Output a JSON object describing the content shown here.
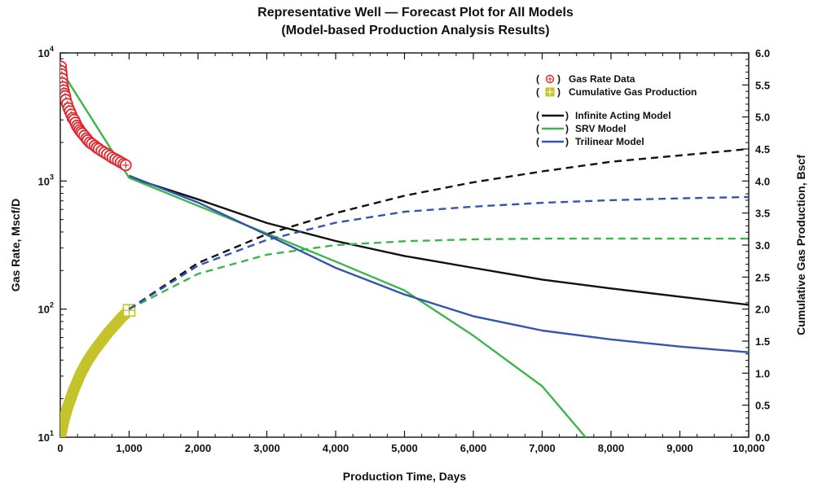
{
  "chart_data": {
    "type": "line",
    "title": "Representative Well — Forecast Plot for All Models",
    "subtitle": "(Model-based Production Analysis Results)",
    "xlabel": "Production Time, Days",
    "ylabel_left": "Gas Rate, Mscf/D",
    "ylabel_right": "Cumulative Gas Production, Bscf",
    "xlim": [
      0,
      10000
    ],
    "ylim_left": [
      10,
      10000
    ],
    "yscale_left": "log",
    "ylim_right": [
      0,
      6
    ],
    "x_ticks": [
      0,
      1000,
      2000,
      3000,
      4000,
      5000,
      6000,
      7000,
      8000,
      9000,
      10000
    ],
    "x_tick_labels": [
      "0",
      "1,000",
      "2,000",
      "3,000",
      "4,000",
      "5,000",
      "6,000",
      "7,000",
      "8,000",
      "9,000",
      "10,000"
    ],
    "y_left_ticks": [
      {
        "value": 10,
        "base": "10",
        "exp": "1"
      },
      {
        "value": 100,
        "base": "10",
        "exp": "2"
      },
      {
        "value": 1000,
        "base": "10",
        "exp": "3"
      },
      {
        "value": 10000,
        "base": "10",
        "exp": "4"
      }
    ],
    "y_right_ticks": [
      0,
      0.5,
      1,
      1.5,
      2,
      2.5,
      3,
      3.5,
      4,
      4.5,
      5,
      5.5,
      6
    ],
    "y_right_tick_labels": [
      "0.0",
      "0.5",
      "1.0",
      "1.5",
      "2.0",
      "2.5",
      "3.0",
      "3.5",
      "4.0",
      "4.5",
      "5.0",
      "5.5",
      "6.0"
    ],
    "legend": {
      "placement": "top-right",
      "entries": [
        {
          "label": "Gas Rate Data",
          "marker": "circle-plus",
          "color": "#e0272e"
        },
        {
          "label": "Cumulative Gas Production",
          "marker": "square-plus",
          "color": "#c4c42a"
        },
        {
          "label": "Infinite Acting Model",
          "line": "solid",
          "color": "#111111"
        },
        {
          "label": "SRV Model",
          "line": "solid",
          "color": "#3cb54a"
        },
        {
          "label": "Trilinear Model",
          "line": "solid",
          "color": "#3355b0"
        }
      ]
    },
    "series": [
      {
        "name": "Gas Rate Data",
        "axis": "left",
        "kind": "scatter",
        "color": "#e0272e",
        "x": [
          10,
          15,
          20,
          25,
          30,
          40,
          50,
          60,
          70,
          80,
          100,
          120,
          140,
          160,
          180,
          200,
          220,
          240,
          260,
          280,
          300,
          320,
          350,
          380,
          400,
          430,
          460,
          500,
          530,
          560,
          600,
          640,
          680,
          720,
          760,
          800,
          840,
          880,
          920,
          950
        ],
        "y": [
          7800,
          7200,
          6800,
          6300,
          5800,
          5400,
          5100,
          4800,
          4600,
          4300,
          4000,
          3700,
          3500,
          3300,
          3100,
          3000,
          2850,
          2700,
          2600,
          2500,
          2420,
          2350,
          2250,
          2150,
          2080,
          2000,
          1950,
          1880,
          1820,
          1780,
          1720,
          1670,
          1620,
          1570,
          1520,
          1480,
          1440,
          1400,
          1360,
          1330
        ]
      },
      {
        "name": "Cumulative Gas Production",
        "axis": "right",
        "kind": "band",
        "color": "#c4c42a",
        "x": [
          0,
          50,
          100,
          200,
          300,
          400,
          500,
          600,
          700,
          800,
          900,
          1000
        ],
        "y": [
          0.0,
          0.25,
          0.45,
          0.75,
          1.0,
          1.2,
          1.36,
          1.5,
          1.64,
          1.76,
          1.88,
          1.98
        ]
      },
      {
        "name": "Infinite Acting Model",
        "axis": "left",
        "kind": "line",
        "color": "#111111",
        "x": [
          1000,
          1100,
          2000,
          3000,
          4000,
          5000,
          6000,
          7000,
          8000,
          9000,
          10000
        ],
        "y": [
          1100,
          1030,
          720,
          470,
          340,
          260,
          210,
          170,
          145,
          125,
          108
        ]
      },
      {
        "name": "SRV Model",
        "axis": "left",
        "kind": "line",
        "color": "#3cb54a",
        "x": [
          0,
          1000,
          2000,
          3000,
          4000,
          5000,
          6000,
          7000,
          7630
        ],
        "y": [
          7500,
          1060,
          640,
          390,
          235,
          140,
          62,
          25,
          10
        ]
      },
      {
        "name": "Trilinear Model",
        "axis": "left",
        "kind": "line",
        "color": "#3355b0",
        "x": [
          1000,
          2000,
          3000,
          4000,
          5000,
          6000,
          7000,
          8000,
          9000,
          10000
        ],
        "y": [
          1100,
          680,
          380,
          210,
          130,
          88,
          68,
          58,
          51,
          46
        ]
      },
      {
        "name": "Infinite Acting Model (cumulative forecast)",
        "axis": "right",
        "kind": "dashed",
        "color": "#111111",
        "x": [
          1000,
          2000,
          3000,
          4000,
          5000,
          6000,
          7000,
          8000,
          9000,
          10000
        ],
        "y": [
          2.0,
          2.72,
          3.17,
          3.5,
          3.77,
          3.98,
          4.15,
          4.3,
          4.4,
          4.5
        ]
      },
      {
        "name": "SRV Model (cumulative forecast)",
        "axis": "right",
        "kind": "dashed",
        "color": "#3cb54a",
        "x": [
          1000,
          2000,
          3000,
          4000,
          5000,
          6000,
          7000,
          8000,
          9000,
          10000
        ],
        "y": [
          2.0,
          2.55,
          2.85,
          3.0,
          3.06,
          3.09,
          3.1,
          3.1,
          3.1,
          3.1
        ]
      },
      {
        "name": "Trilinear Model (cumulative forecast)",
        "axis": "right",
        "kind": "dashed",
        "color": "#3355b0",
        "x": [
          1000,
          2000,
          3000,
          4000,
          5000,
          6000,
          7000,
          8000,
          9000,
          10000
        ],
        "y": [
          2.0,
          2.68,
          3.08,
          3.35,
          3.52,
          3.6,
          3.66,
          3.7,
          3.73,
          3.75
        ]
      }
    ]
  }
}
